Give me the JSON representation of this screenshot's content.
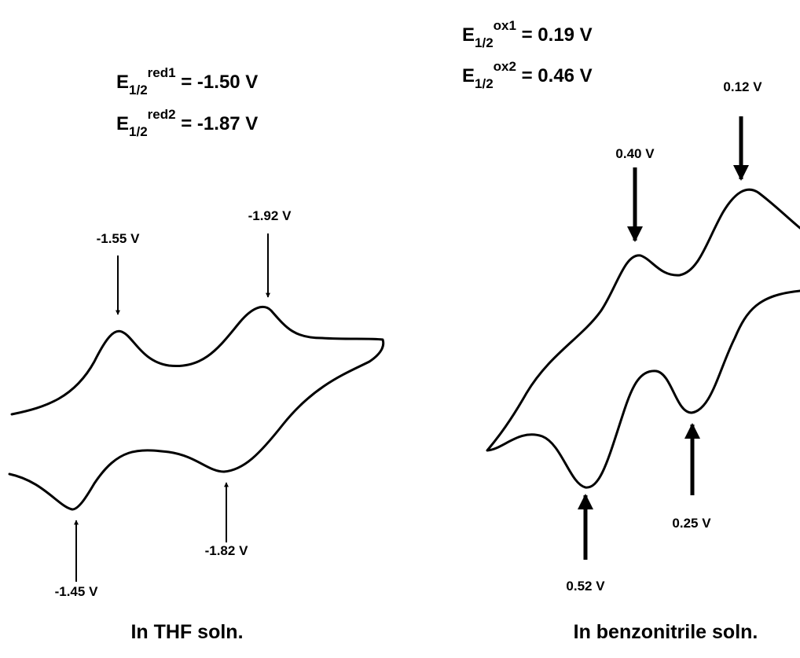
{
  "left": {
    "potentials": [
      {
        "symbol": "E",
        "sub": "1/2",
        "sup": "red1",
        "rest": " = -1.50 V"
      },
      {
        "symbol": "E",
        "sub": "1/2",
        "sup": "red2",
        "rest": " = -1.87 V"
      }
    ],
    "peaks": [
      "-1.55 V",
      "-1.92 V",
      "-1.45 V",
      "-1.82 V"
    ],
    "caption": "In THF soln."
  },
  "right": {
    "potentials": [
      {
        "symbol": "E",
        "sub": "1/2",
        "sup": "ox1",
        "rest": " = 0.19 V"
      },
      {
        "symbol": "E",
        "sub": "1/2",
        "sup": "ox2",
        "rest": " = 0.46 V"
      }
    ],
    "peaks": [
      "0.40 V",
      "0.12 V",
      "0.52 V",
      "0.25 V"
    ],
    "caption": "In benzonitrile soln."
  }
}
